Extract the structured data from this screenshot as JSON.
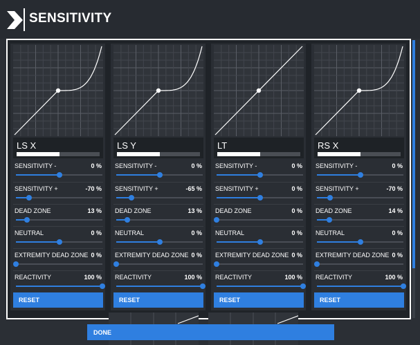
{
  "header": {
    "title": "SENSITIVITY"
  },
  "colors": {
    "accent": "#2f7fe0",
    "panel": "#2a2e34",
    "background": "#2b2f35"
  },
  "columns": [
    {
      "axis": "LS X",
      "curve": "expo",
      "axis_indicator": 0.52,
      "settings": [
        {
          "label": "SENSITIVITY -",
          "value": "0 %",
          "level": 0.5
        },
        {
          "label": "SENSITIVITY +",
          "value": "-70 %",
          "level": 0.15
        },
        {
          "label": "DEAD ZONE",
          "value": "13 %",
          "level": 0.13
        },
        {
          "label": "NEUTRAL",
          "value": "0 %",
          "level": 0.5
        },
        {
          "label": "EXTREMITY DEAD ZONE",
          "value": "0 %",
          "level": 0.0
        },
        {
          "label": "REACTIVITY",
          "value": "100 %",
          "level": 1.0
        }
      ],
      "reset_label": "RESET"
    },
    {
      "axis": "LS Y",
      "curve": "expo",
      "axis_indicator": 0.52,
      "settings": [
        {
          "label": "SENSITIVITY -",
          "value": "0 %",
          "level": 0.5
        },
        {
          "label": "SENSITIVITY +",
          "value": "-65 %",
          "level": 0.175
        },
        {
          "label": "DEAD ZONE",
          "value": "13 %",
          "level": 0.13
        },
        {
          "label": "NEUTRAL",
          "value": "0 %",
          "level": 0.5
        },
        {
          "label": "EXTREMITY DEAD ZONE",
          "value": "0 %",
          "level": 0.0
        },
        {
          "label": "REACTIVITY",
          "value": "100 %",
          "level": 1.0
        }
      ],
      "reset_label": "RESET"
    },
    {
      "axis": "LT",
      "curve": "linear",
      "axis_indicator": 0.52,
      "settings": [
        {
          "label": "SENSITIVITY -",
          "value": "0 %",
          "level": 0.5
        },
        {
          "label": "SENSITIVITY +",
          "value": "0 %",
          "level": 0.5
        },
        {
          "label": "DEAD ZONE",
          "value": "0 %",
          "level": 0.0
        },
        {
          "label": "NEUTRAL",
          "value": "0 %",
          "level": 0.5
        },
        {
          "label": "EXTREMITY DEAD ZONE",
          "value": "0 %",
          "level": 0.0
        },
        {
          "label": "REACTIVITY",
          "value": "100 %",
          "level": 1.0
        }
      ],
      "reset_label": "RESET"
    },
    {
      "axis": "RS X",
      "curve": "expo",
      "axis_indicator": 0.52,
      "settings": [
        {
          "label": "SENSITIVITY -",
          "value": "0 %",
          "level": 0.5
        },
        {
          "label": "SENSITIVITY +",
          "value": "-70 %",
          "level": 0.15
        },
        {
          "label": "DEAD ZONE",
          "value": "14 %",
          "level": 0.14
        },
        {
          "label": "NEUTRAL",
          "value": "0 %",
          "level": 0.5
        },
        {
          "label": "EXTREMITY DEAD ZONE",
          "value": "0 %",
          "level": 0.0
        },
        {
          "label": "REACTIVITY",
          "value": "100 %",
          "level": 1.0
        }
      ],
      "reset_label": "RESET"
    }
  ],
  "footer": {
    "done_label": "DONE"
  }
}
